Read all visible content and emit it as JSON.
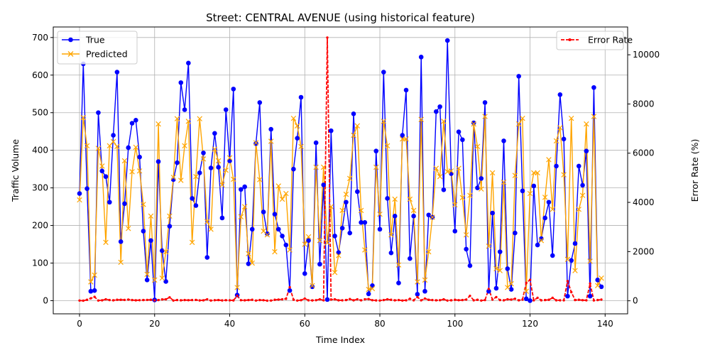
{
  "chart_data": {
    "type": "line",
    "title": "Street: CENTRAL AVENUE (using historical feature)",
    "xlabel": "Time Index",
    "ylabel": "Traffic Volume",
    "y2label": "Error Rate (%)",
    "xlim": [
      -7,
      146
    ],
    "ylim": [
      -35,
      728
    ],
    "y2lim": [
      -530,
      11130
    ],
    "xticks": [
      0,
      20,
      40,
      60,
      80,
      100,
      120,
      140
    ],
    "yticks": [
      0,
      100,
      200,
      300,
      400,
      500,
      600,
      700
    ],
    "y2ticks": [
      0,
      2000,
      4000,
      6000,
      8000,
      10000
    ],
    "grid": true,
    "legend_left_placement": "upper-left",
    "legend_right_placement": "upper-right",
    "colors": {
      "true": "#0000ff",
      "predicted": "#ffa500",
      "error": "#ff0000"
    },
    "series": [
      {
        "name": "True",
        "axis": "left",
        "marker": "circle",
        "values": [
          285,
          630,
          298,
          25,
          27,
          500,
          345,
          330,
          262,
          440,
          608,
          157,
          258,
          407,
          472,
          480,
          382,
          185,
          55,
          160,
          2,
          370,
          133,
          51,
          198,
          322,
          367,
          580,
          508,
          632,
          272,
          253,
          340,
          393,
          115,
          353,
          445,
          355,
          220,
          508,
          372,
          563,
          15,
          296,
          303,
          98,
          190,
          418,
          527,
          236,
          178,
          456,
          230,
          190,
          172,
          148,
          27,
          350,
          432,
          541,
          72,
          160,
          37,
          420,
          97,
          308,
          3,
          452,
          172,
          128,
          193,
          262,
          180,
          497,
          290,
          208,
          208,
          18,
          40,
          398,
          190,
          608,
          272,
          127,
          225,
          47,
          440,
          560,
          112,
          225,
          17,
          648,
          25,
          228,
          222,
          503,
          516,
          295,
          692,
          338,
          185,
          449,
          428,
          137,
          93,
          473,
          300,
          325,
          527,
          25,
          233,
          33,
          130,
          425,
          85,
          30,
          180,
          597,
          292,
          5,
          0,
          305,
          148,
          165,
          220,
          262,
          120,
          358,
          548,
          430,
          12,
          107,
          152,
          358,
          307,
          398,
          12,
          567,
          55,
          37
        ]
      },
      {
        "name": "Predicted",
        "axis": "left",
        "marker": "x",
        "values": [
          268,
          487,
          412,
          50,
          68,
          405,
          358,
          155,
          412,
          423,
          410,
          102,
          372,
          192,
          343,
          408,
          345,
          256,
          70,
          225,
          55,
          470,
          60,
          130,
          225,
          328,
          484,
          320,
          412,
          477,
          155,
          330,
          484,
          377,
          210,
          190,
          403,
          372,
          308,
          347,
          380,
          323,
          35,
          223,
          250,
          125,
          100,
          420,
          322,
          185,
          175,
          424,
          130,
          305,
          270,
          285,
          135,
          485,
          465,
          410,
          150,
          170,
          40,
          355,
          160,
          355,
          154,
          250,
          75,
          120,
          240,
          283,
          325,
          440,
          465,
          240,
          135,
          30,
          32,
          355,
          230,
          477,
          412,
          175,
          270,
          95,
          430,
          430,
          270,
          240,
          50,
          482,
          55,
          130,
          222,
          352,
          330,
          477,
          343,
          345,
          255,
          352,
          274,
          175,
          280,
          470,
          410,
          297,
          490,
          145,
          340,
          85,
          80,
          315,
          35,
          45,
          333,
          470,
          485,
          25,
          285,
          340,
          340,
          160,
          275,
          375,
          243,
          425,
          460,
          335,
          110,
          485,
          80,
          243,
          280,
          470,
          105,
          490,
          40,
          60
        ]
      },
      {
        "name": "Error Rate",
        "axis": "right",
        "marker": "dot",
        "dashed": true,
        "values": [
          10,
          5,
          40,
          100,
          160,
          10,
          20,
          60,
          30,
          20,
          40,
          40,
          35,
          50,
          30,
          20,
          25,
          30,
          35,
          40,
          20,
          30,
          55,
          60,
          140,
          10,
          30,
          20,
          30,
          25,
          30,
          35,
          15,
          20,
          60,
          10,
          25,
          30,
          15,
          25,
          20,
          15,
          200,
          25,
          20,
          30,
          40,
          10,
          30,
          25,
          5,
          10,
          40,
          50,
          60,
          80,
          550,
          45,
          10,
          25,
          90,
          20,
          15,
          25,
          60,
          20,
          10700,
          50,
          60,
          20,
          20,
          30,
          70,
          20,
          60,
          20,
          60,
          70,
          25,
          15,
          10,
          30,
          60,
          40,
          20,
          30,
          10,
          20,
          80,
          20,
          150,
          20,
          90,
          40,
          30,
          20,
          25,
          60,
          10,
          20,
          40,
          25,
          30,
          50,
          200,
          20,
          40,
          10,
          30,
          480,
          50,
          150,
          30,
          20,
          60,
          50,
          80,
          20,
          50,
          730,
          850,
          20,
          120,
          20,
          30,
          40,
          120,
          20,
          20,
          20,
          800,
          350,
          30,
          40,
          25,
          20,
          700,
          15,
          30,
          50
        ]
      }
    ]
  }
}
